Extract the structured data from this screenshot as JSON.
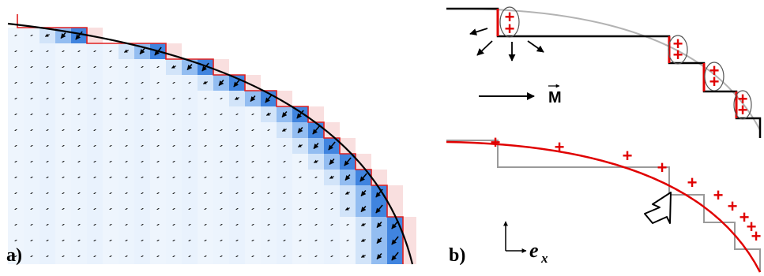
{
  "panel_a": {
    "label": "a)",
    "cell_color": "#1e6fd9",
    "arrow_color": "#000000",
    "boundary_color": "#e02020"
  },
  "panel_b": {
    "label": "b)",
    "magnetization_label": "M",
    "axis_label_main": "e",
    "axis_label_sub": "x",
    "charge_symbol": "+",
    "charge_color": "#e00000"
  }
}
